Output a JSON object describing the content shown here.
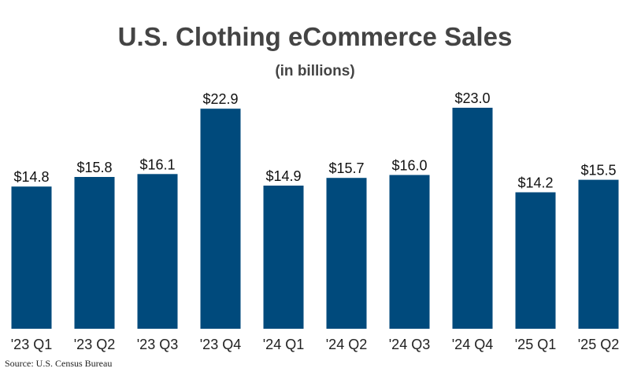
{
  "header": {
    "title": "U.S. Clothing eCommerce Sales",
    "subtitle": "(in billions)"
  },
  "footer": {
    "source": "Source: U.S. Census Bureau"
  },
  "colors": {
    "bar": "#004a7c",
    "text": "#444444"
  },
  "chart_data": {
    "type": "bar",
    "title": "U.S. Clothing eCommerce Sales",
    "subtitle": "(in billions)",
    "categories": [
      "'23 Q1",
      "'23 Q2",
      "'23 Q3",
      "'23 Q4",
      "'24 Q1",
      "'24 Q2",
      "'24 Q3",
      "'24 Q4",
      "'25 Q1",
      "'25 Q2"
    ],
    "values": [
      14.8,
      15.8,
      16.1,
      22.9,
      14.9,
      15.7,
      16.0,
      23.0,
      14.2,
      15.5
    ],
    "labels": [
      "$14.8",
      "$15.8",
      "$16.1",
      "$22.9",
      "$14.9",
      "$15.7",
      "$16.0",
      "$23.0",
      "$14.2",
      "$15.5"
    ],
    "xlabel": "",
    "ylabel": "",
    "ylim": [
      0,
      23.0
    ],
    "grid": false,
    "legend": "none"
  }
}
